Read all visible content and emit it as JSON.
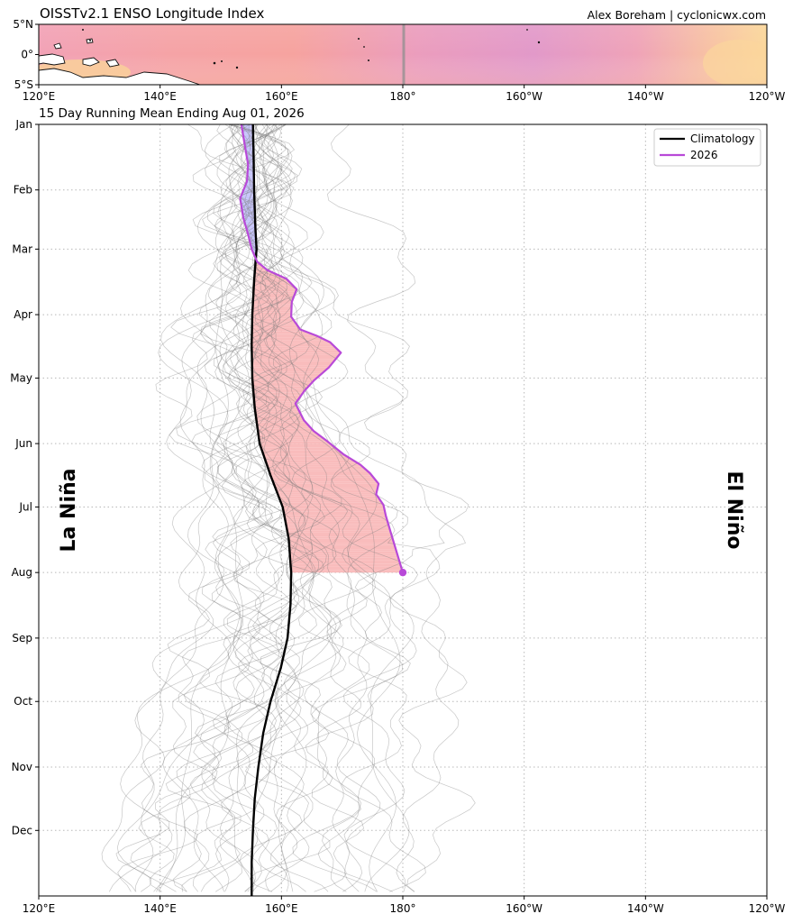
{
  "header": {
    "title": "OISSTv2.1 ENSO Longitude Index",
    "credit": "Alex Boreham | cyclonicwx.com"
  },
  "chart_data": [
    {
      "type": "heatmap",
      "description_panel": "map",
      "lat_ticks": [
        "5°N",
        "0°",
        "5°S"
      ],
      "lon_ticks": [
        "120°E",
        "140°E",
        "160°E",
        "180°",
        "160°W",
        "140°W",
        "120°W"
      ],
      "lon_values": [
        120,
        140,
        160,
        180,
        200,
        220,
        240
      ],
      "lat_range": [
        -5,
        5
      ],
      "lon_range": [
        120,
        240
      ],
      "marker_lon": 180,
      "colors": {
        "warm": "#f4a3a0",
        "mid": "#e49ac8",
        "cool": "#f9d39a",
        "land": "#ffffff"
      }
    },
    {
      "type": "line",
      "subtitle": "15 Day Running Mean Ending Aug 01, 2026",
      "x_ticks": [
        "120°E",
        "140°E",
        "160°E",
        "180°",
        "160°W",
        "140°W",
        "120°W"
      ],
      "x_tick_values": [
        120,
        140,
        160,
        180,
        200,
        220,
        240
      ],
      "xlim": [
        120,
        240
      ],
      "y_ticks": [
        "Jan",
        "Feb",
        "Mar",
        "Apr",
        "May",
        "Jun",
        "Jul",
        "Aug",
        "Sep",
        "Oct",
        "Nov",
        "Dec"
      ],
      "ylim_days": [
        1,
        366
      ],
      "grid": true,
      "legend_position": "top-right",
      "side_labels": {
        "left": "La Niña",
        "right": "El Niño"
      },
      "series": [
        {
          "name": "Climatology",
          "color": "#000000",
          "points": [
            [
              155.3,
              1
            ],
            [
              155.4,
              15
            ],
            [
              155.5,
              32
            ],
            [
              155.7,
              50
            ],
            [
              155.9,
              60
            ],
            [
              155.5,
              75
            ],
            [
              155.2,
              91
            ],
            [
              155.1,
              105
            ],
            [
              155.2,
              121
            ],
            [
              155.6,
              135
            ],
            [
              156.4,
              152
            ],
            [
              158.2,
              167
            ],
            [
              160.2,
              182
            ],
            [
              161.2,
              197
            ],
            [
              161.6,
              213
            ],
            [
              161.5,
              228
            ],
            [
              161.0,
              244
            ],
            [
              159.9,
              258
            ],
            [
              158.2,
              274
            ],
            [
              157.0,
              289
            ],
            [
              156.2,
              305
            ],
            [
              155.6,
              320
            ],
            [
              155.3,
              335
            ],
            [
              155.1,
              350
            ],
            [
              155.1,
              366
            ]
          ]
        },
        {
          "name": "2026",
          "color": "#b849d8",
          "points": [
            [
              153.4,
              1
            ],
            [
              153.9,
              10
            ],
            [
              154.5,
              20
            ],
            [
              154.3,
              28
            ],
            [
              153.2,
              36
            ],
            [
              153.7,
              45
            ],
            [
              154.5,
              53
            ],
            [
              155.1,
              60
            ],
            [
              156.0,
              66
            ],
            [
              157.7,
              70
            ],
            [
              160.8,
              74
            ],
            [
              162.5,
              79
            ],
            [
              161.7,
              85
            ],
            [
              161.6,
              92
            ],
            [
              163.1,
              98
            ],
            [
              165.8,
              101
            ],
            [
              168.0,
              104
            ],
            [
              169.8,
              109
            ],
            [
              167.8,
              116
            ],
            [
              165.4,
              122
            ],
            [
              163.8,
              127
            ],
            [
              162.3,
              133
            ],
            [
              163.7,
              141
            ],
            [
              165.3,
              146
            ],
            [
              167.6,
              151
            ],
            [
              170.2,
              157
            ],
            [
              173.0,
              162
            ],
            [
              174.6,
              166
            ],
            [
              176.0,
              171
            ],
            [
              175.6,
              176
            ],
            [
              176.8,
              181
            ],
            [
              177.2,
              186
            ],
            [
              177.9,
              193
            ],
            [
              180.0,
              213
            ]
          ]
        }
      ],
      "endpoint": {
        "x": 180.0,
        "date": "Aug 01, 2026"
      },
      "shading": {
        "above_climatology": "#f9bcbc",
        "below_climatology": "#c6c4fa"
      }
    }
  ]
}
